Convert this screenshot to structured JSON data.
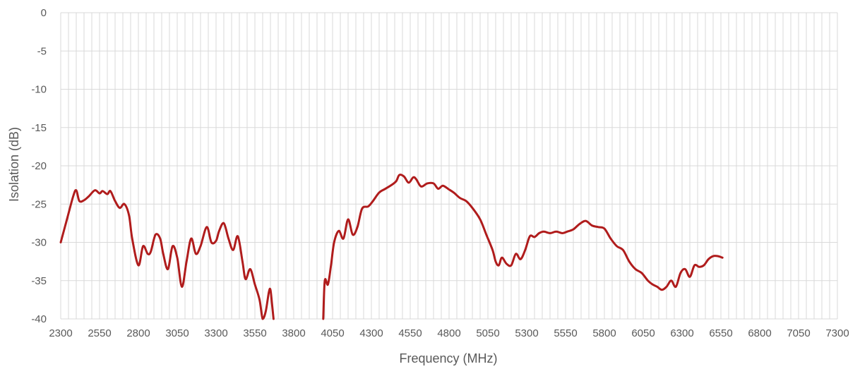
{
  "chart_data": {
    "type": "line",
    "title": "",
    "xlabel": "Frequency (MHz)",
    "ylabel": "Isolation (dB)",
    "xlim": [
      2300,
      7300
    ],
    "ylim": [
      -40,
      0
    ],
    "grid": true,
    "x_ticks": [
      "2300",
      "2550",
      "2800",
      "3050",
      "3300",
      "3550",
      "3800",
      "4050",
      "4300",
      "4550",
      "4800",
      "5050",
      "5300",
      "5550",
      "5800",
      "6050",
      "6300",
      "6550",
      "6800",
      "7050",
      "7300"
    ],
    "y_ticks": [
      "0",
      "-5",
      "-10",
      "-15",
      "-20",
      "-25",
      "-30",
      "-35",
      "-40"
    ],
    "series": [
      {
        "color": "#b01c1c",
        "segments": [
          [
            [
              2300,
              -30
            ],
            [
              2340,
              -27
            ],
            [
              2380,
              -24
            ],
            [
              2400,
              -23.2
            ],
            [
              2420,
              -24.6
            ],
            [
              2450,
              -24.5
            ],
            [
              2480,
              -24
            ],
            [
              2520,
              -23.2
            ],
            [
              2550,
              -23.6
            ],
            [
              2570,
              -23.3
            ],
            [
              2600,
              -23.7
            ],
            [
              2620,
              -23.3
            ],
            [
              2650,
              -24.6
            ],
            [
              2680,
              -25.5
            ],
            [
              2710,
              -25
            ],
            [
              2740,
              -26.5
            ],
            [
              2760,
              -29.5
            ],
            [
              2800,
              -33
            ],
            [
              2830,
              -30.5
            ],
            [
              2860,
              -31.5
            ],
            [
              2880,
              -31.2
            ],
            [
              2910,
              -29
            ],
            [
              2940,
              -29.5
            ],
            [
              2960,
              -31.5
            ],
            [
              2990,
              -33.5
            ],
            [
              3020,
              -30.5
            ],
            [
              3050,
              -32
            ],
            [
              3080,
              -35.8
            ],
            [
              3110,
              -32.5
            ],
            [
              3140,
              -29.5
            ],
            [
              3170,
              -31.5
            ],
            [
              3200,
              -30.5
            ],
            [
              3240,
              -28
            ],
            [
              3270,
              -30
            ],
            [
              3300,
              -29.8
            ],
            [
              3320,
              -28.5
            ],
            [
              3350,
              -27.5
            ],
            [
              3380,
              -29.5
            ],
            [
              3410,
              -31
            ],
            [
              3440,
              -29.2
            ],
            [
              3470,
              -32.5
            ],
            [
              3490,
              -34.8
            ],
            [
              3520,
              -33.5
            ],
            [
              3550,
              -35.5
            ],
            [
              3580,
              -37.5
            ],
            [
              3600,
              -40
            ],
            [
              3620,
              -39
            ],
            [
              3640,
              -36.5
            ],
            [
              3650,
              -36.2
            ],
            [
              3660,
              -38
            ],
            [
              3670,
              -40
            ]
          ],
          [
            [
              3990,
              -40
            ],
            [
              4000,
              -35
            ],
            [
              4020,
              -35.5
            ],
            [
              4040,
              -33
            ],
            [
              4060,
              -30
            ],
            [
              4090,
              -28.5
            ],
            [
              4120,
              -29.5
            ],
            [
              4150,
              -27
            ],
            [
              4180,
              -29
            ],
            [
              4210,
              -28
            ],
            [
              4240,
              -25.6
            ],
            [
              4280,
              -25.3
            ],
            [
              4310,
              -24.6
            ],
            [
              4350,
              -23.5
            ],
            [
              4390,
              -23
            ],
            [
              4430,
              -22.5
            ],
            [
              4460,
              -22
            ],
            [
              4480,
              -21.2
            ],
            [
              4510,
              -21.4
            ],
            [
              4540,
              -22.2
            ],
            [
              4570,
              -21.5
            ],
            [
              4590,
              -21.8
            ],
            [
              4620,
              -22.7
            ],
            [
              4660,
              -22.3
            ],
            [
              4700,
              -22.3
            ],
            [
              4730,
              -23
            ],
            [
              4760,
              -22.6
            ],
            [
              4800,
              -23.1
            ],
            [
              4830,
              -23.5
            ],
            [
              4870,
              -24.2
            ],
            [
              4910,
              -24.6
            ],
            [
              4950,
              -25.5
            ],
            [
              5000,
              -27
            ],
            [
              5040,
              -29
            ],
            [
              5080,
              -31
            ],
            [
              5100,
              -32.5
            ],
            [
              5120,
              -33
            ],
            [
              5140,
              -32
            ],
            [
              5170,
              -32.8
            ],
            [
              5200,
              -33
            ],
            [
              5230,
              -31.5
            ],
            [
              5260,
              -32.2
            ],
            [
              5290,
              -31
            ],
            [
              5320,
              -29.2
            ],
            [
              5350,
              -29.3
            ],
            [
              5380,
              -28.8
            ],
            [
              5410,
              -28.6
            ],
            [
              5450,
              -28.8
            ],
            [
              5490,
              -28.6
            ],
            [
              5530,
              -28.8
            ],
            [
              5560,
              -28.6
            ],
            [
              5600,
              -28.3
            ],
            [
              5640,
              -27.6
            ],
            [
              5680,
              -27.2
            ],
            [
              5720,
              -27.8
            ],
            [
              5760,
              -28
            ],
            [
              5800,
              -28.2
            ],
            [
              5840,
              -29.5
            ],
            [
              5880,
              -30.5
            ],
            [
              5920,
              -31
            ],
            [
              5960,
              -32.5
            ],
            [
              6000,
              -33.5
            ],
            [
              6040,
              -34
            ],
            [
              6080,
              -35
            ],
            [
              6110,
              -35.5
            ],
            [
              6140,
              -35.8
            ],
            [
              6170,
              -36.2
            ],
            [
              6200,
              -35.8
            ],
            [
              6230,
              -35
            ],
            [
              6260,
              -35.8
            ],
            [
              6290,
              -34
            ],
            [
              6320,
              -33.5
            ],
            [
              6350,
              -34.5
            ],
            [
              6380,
              -33
            ],
            [
              6410,
              -33.2
            ],
            [
              6440,
              -33
            ],
            [
              6470,
              -32.2
            ],
            [
              6500,
              -31.8
            ],
            [
              6530,
              -31.8
            ],
            [
              6560,
              -32
            ]
          ]
        ]
      }
    ]
  }
}
